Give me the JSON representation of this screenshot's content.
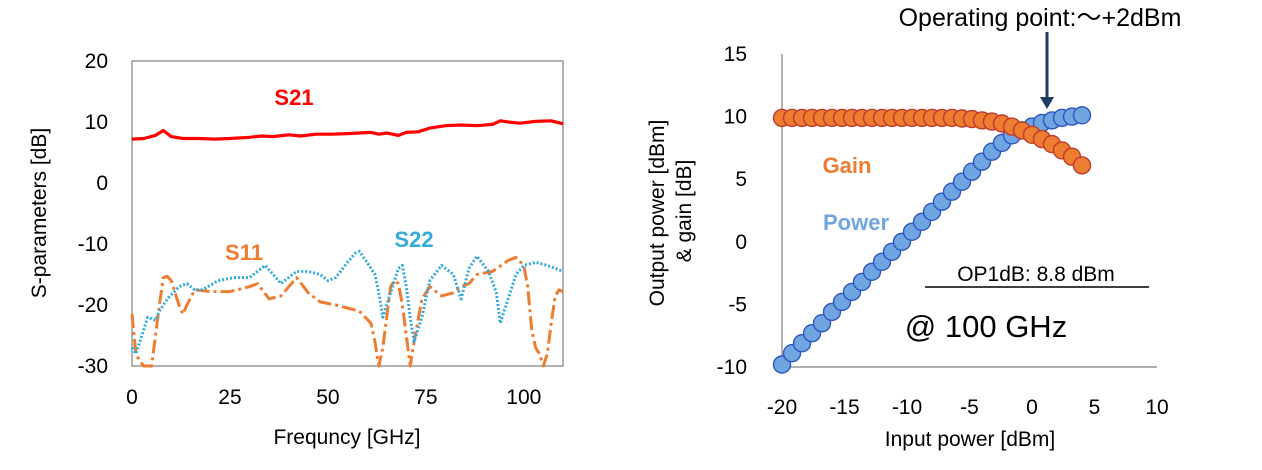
{
  "chart_data": [
    {
      "type": "line",
      "xlabel": "Frequncy [GHz]",
      "ylabel": "S-parameters [dB]",
      "xlim": [
        0,
        110
      ],
      "ylim": [
        -30,
        20
      ],
      "xticks": [
        "0",
        "25",
        "50",
        "75",
        "100"
      ],
      "yticks": [
        "20",
        "10",
        "0",
        "-10",
        "-20",
        "-30"
      ],
      "grid": false,
      "series": [
        {
          "name": "S21",
          "color": "#ff0000",
          "style": "solid",
          "points": [
            [
              0,
              7.2
            ],
            [
              3,
              7.3
            ],
            [
              6,
              7.8
            ],
            [
              8,
              8.6
            ],
            [
              10,
              7.6
            ],
            [
              13,
              7.3
            ],
            [
              17,
              7.3
            ],
            [
              21,
              7.2
            ],
            [
              25,
              7.3
            ],
            [
              30,
              7.5
            ],
            [
              33,
              7.7
            ],
            [
              36,
              7.6
            ],
            [
              40,
              7.9
            ],
            [
              43,
              7.7
            ],
            [
              47,
              8.0
            ],
            [
              51,
              8.0
            ],
            [
              55,
              8.1
            ],
            [
              58,
              8.2
            ],
            [
              61,
              8.3
            ],
            [
              63,
              8.0
            ],
            [
              65,
              8.2
            ],
            [
              68,
              7.8
            ],
            [
              70,
              8.3
            ],
            [
              73,
              8.4
            ],
            [
              76,
              9.0
            ],
            [
              80,
              9.4
            ],
            [
              84,
              9.5
            ],
            [
              88,
              9.4
            ],
            [
              92,
              9.6
            ],
            [
              94,
              10.2
            ],
            [
              96,
              10.0
            ],
            [
              99,
              9.8
            ],
            [
              103,
              10.1
            ],
            [
              107,
              10.2
            ],
            [
              110,
              9.7
            ]
          ]
        },
        {
          "name": "S11",
          "color": "#ed7d31",
          "style": "dashdot",
          "points": [
            [
              0,
              -21.5
            ],
            [
              1,
              -28
            ],
            [
              2,
              -29.2
            ],
            [
              3,
              -30
            ],
            [
              5,
              -30
            ],
            [
              6,
              -25
            ],
            [
              7,
              -20
            ],
            [
              8,
              -15.5
            ],
            [
              9,
              -15.3
            ],
            [
              10,
              -16
            ],
            [
              11,
              -18
            ],
            [
              12,
              -20
            ],
            [
              13,
              -21.5
            ],
            [
              14,
              -20
            ],
            [
              16,
              -17.5
            ],
            [
              20,
              -17.8
            ],
            [
              25,
              -17.8
            ],
            [
              30,
              -17
            ],
            [
              32,
              -16.5
            ],
            [
              35,
              -19
            ],
            [
              38,
              -18.5
            ],
            [
              42,
              -15.5
            ],
            [
              45,
              -18
            ],
            [
              48,
              -19.5
            ],
            [
              52,
              -20
            ],
            [
              55,
              -20.5
            ],
            [
              58,
              -21
            ],
            [
              61,
              -23
            ],
            [
              62,
              -26
            ],
            [
              63,
              -30
            ],
            [
              64,
              -27
            ],
            [
              66,
              -17
            ],
            [
              67,
              -16
            ],
            [
              68,
              -16.5
            ],
            [
              69,
              -20
            ],
            [
              70,
              -25
            ],
            [
              71,
              -30
            ],
            [
              72,
              -26
            ],
            [
              74,
              -19
            ],
            [
              76,
              -17
            ],
            [
              79,
              -18.5
            ],
            [
              82,
              -18
            ],
            [
              84,
              -17
            ],
            [
              86,
              -16.5
            ],
            [
              88,
              -15
            ],
            [
              92,
              -14.5
            ],
            [
              96,
              -12.7
            ],
            [
              98,
              -12.2
            ],
            [
              100,
              -13.5
            ],
            [
              101,
              -17
            ],
            [
              102,
              -24
            ],
            [
              103,
              -27
            ],
            [
              104,
              -28
            ],
            [
              105,
              -30
            ],
            [
              106,
              -28
            ],
            [
              107,
              -23
            ],
            [
              108,
              -18.5
            ],
            [
              109,
              -17.5
            ],
            [
              110,
              -17.8
            ]
          ]
        },
        {
          "name": "S22",
          "color": "#33aadd",
          "style": "dotted",
          "points": [
            [
              0,
              -27
            ],
            [
              1,
              -28
            ],
            [
              3,
              -24
            ],
            [
              4,
              -22
            ],
            [
              6,
              -22.5
            ],
            [
              7,
              -21
            ],
            [
              9,
              -19
            ],
            [
              12,
              -17
            ],
            [
              14,
              -16.5
            ],
            [
              16,
              -17.5
            ],
            [
              18,
              -17.5
            ],
            [
              22,
              -16
            ],
            [
              26,
              -15.5
            ],
            [
              30,
              -15.5
            ],
            [
              34,
              -13.5
            ],
            [
              36,
              -15
            ],
            [
              38,
              -16.5
            ],
            [
              42,
              -14.5
            ],
            [
              45,
              -14.5
            ],
            [
              48,
              -15
            ],
            [
              50,
              -16
            ],
            [
              52,
              -15.5
            ],
            [
              55,
              -13
            ],
            [
              57,
              -11.5
            ],
            [
              58,
              -11.2
            ],
            [
              60,
              -13
            ],
            [
              62,
              -15
            ],
            [
              63,
              -18
            ],
            [
              64,
              -22
            ],
            [
              66,
              -18
            ],
            [
              68,
              -14
            ],
            [
              69,
              -13.5
            ],
            [
              70,
              -17
            ],
            [
              71,
              -22
            ],
            [
              72,
              -26
            ],
            [
              74,
              -22
            ],
            [
              76,
              -16
            ],
            [
              79,
              -13.5
            ],
            [
              82,
              -15
            ],
            [
              84,
              -19
            ],
            [
              86,
              -14
            ],
            [
              88,
              -12
            ],
            [
              91,
              -14.5
            ],
            [
              93,
              -18
            ],
            [
              94,
              -23
            ],
            [
              96,
              -19
            ],
            [
              98,
              -15
            ],
            [
              100,
              -13.5
            ],
            [
              103,
              -13
            ],
            [
              106,
              -13.5
            ],
            [
              110,
              -14.5
            ]
          ]
        }
      ]
    },
    {
      "type": "scatter",
      "xlabel": "Input power [dBm]",
      "ylabel": "Output power [dBm]",
      "ylabel2": "& gain [dB]",
      "xlim": [
        -20,
        10
      ],
      "ylim": [
        -10,
        15
      ],
      "xticks": [
        "-20",
        "-15",
        "-10",
        "-5",
        "0",
        "5",
        "10"
      ],
      "yticks": [
        "15",
        "10",
        "5",
        "0",
        "-5",
        "-10"
      ],
      "grid": false,
      "series": [
        {
          "name": "Power",
          "color": "#6fa6e2",
          "points": [
            [
              -20,
              -9.8
            ],
            [
              -19.2,
              -8.9
            ],
            [
              -18.4,
              -8.1
            ],
            [
              -17.6,
              -7.3
            ],
            [
              -16.8,
              -6.5
            ],
            [
              -16,
              -5.6
            ],
            [
              -15.2,
              -4.8
            ],
            [
              -14.4,
              -4.0
            ],
            [
              -13.6,
              -3.2
            ],
            [
              -12.8,
              -2.4
            ],
            [
              -12,
              -1.6
            ],
            [
              -11.2,
              -0.8
            ],
            [
              -10.4,
              0.0
            ],
            [
              -9.6,
              0.8
            ],
            [
              -8.8,
              1.6
            ],
            [
              -8,
              2.4
            ],
            [
              -7.2,
              3.2
            ],
            [
              -6.4,
              4.0
            ],
            [
              -5.6,
              4.8
            ],
            [
              -4.8,
              5.6
            ],
            [
              -4,
              6.4
            ],
            [
              -3.2,
              7.2
            ],
            [
              -2.4,
              7.9
            ],
            [
              -1.6,
              8.5
            ],
            [
              -0.8,
              8.9
            ],
            [
              0,
              9.2
            ],
            [
              0.8,
              9.5
            ],
            [
              1.6,
              9.7
            ],
            [
              2.4,
              9.9
            ],
            [
              3.2,
              10.0
            ],
            [
              4,
              10.1
            ]
          ]
        },
        {
          "name": "Gain",
          "color": "#ed7d31",
          "points": [
            [
              -20,
              9.9
            ],
            [
              -19.2,
              9.9
            ],
            [
              -18.4,
              9.9
            ],
            [
              -17.6,
              9.9
            ],
            [
              -16.8,
              9.9
            ],
            [
              -16,
              9.9
            ],
            [
              -15.2,
              9.9
            ],
            [
              -14.4,
              9.9
            ],
            [
              -13.6,
              9.9
            ],
            [
              -12.8,
              9.9
            ],
            [
              -12,
              9.9
            ],
            [
              -11.2,
              9.9
            ],
            [
              -10.4,
              9.9
            ],
            [
              -9.6,
              9.9
            ],
            [
              -8.8,
              9.9
            ],
            [
              -8,
              9.9
            ],
            [
              -7.2,
              9.9
            ],
            [
              -6.4,
              9.9
            ],
            [
              -5.6,
              9.85
            ],
            [
              -4.8,
              9.8
            ],
            [
              -4,
              9.7
            ],
            [
              -3.2,
              9.6
            ],
            [
              -2.4,
              9.45
            ],
            [
              -1.6,
              9.2
            ],
            [
              -0.8,
              8.9
            ],
            [
              0,
              8.55
            ],
            [
              0.8,
              8.2
            ],
            [
              1.6,
              7.8
            ],
            [
              2.4,
              7.3
            ],
            [
              3.2,
              6.8
            ],
            [
              4,
              6.1
            ]
          ]
        }
      ],
      "annotations": {
        "operating_point": "Operating point:～+2dBm",
        "op1db": "OP1dB: 8.8 dBm",
        "frequency": "@ 100 GHz"
      }
    }
  ]
}
